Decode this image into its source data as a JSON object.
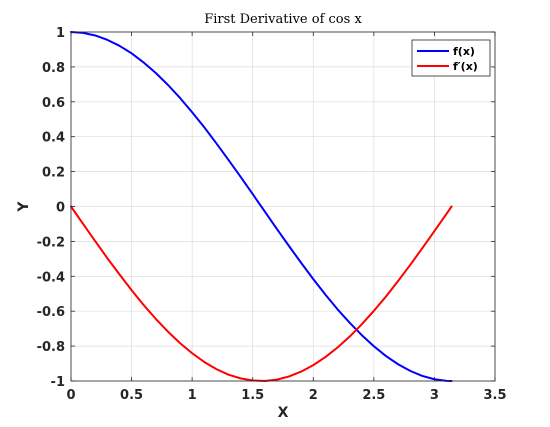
{
  "chart_data": {
    "type": "line",
    "title": "First Derivative of cos x",
    "xlabel": "X",
    "ylabel": "Y",
    "xlim": [
      0,
      3.5
    ],
    "ylim": [
      -1,
      1
    ],
    "xticks": [
      "0",
      "0.5",
      "1",
      "1.5",
      "2",
      "2.5",
      "3",
      "3.5"
    ],
    "yticks": [
      "-1",
      "-0.8",
      "-0.6",
      "-0.4",
      "-0.2",
      "0",
      "0.2",
      "0.4",
      "0.6",
      "0.8",
      "1"
    ],
    "grid": true,
    "legend_position": "top-right",
    "x": [
      0,
      0.1,
      0.2,
      0.3,
      0.4,
      0.5,
      0.6,
      0.7,
      0.8,
      0.9,
      1.0,
      1.1,
      1.2,
      1.3,
      1.4,
      1.5,
      1.6,
      1.7,
      1.8,
      1.9,
      2.0,
      2.1,
      2.2,
      2.3,
      2.4,
      2.5,
      2.6,
      2.7,
      2.8,
      2.9,
      3.0,
      3.1,
      3.1416
    ],
    "series": [
      {
        "name": "f(x)",
        "color": "#0000ff",
        "values": [
          1.0,
          0.995,
          0.98,
          0.955,
          0.921,
          0.878,
          0.825,
          0.765,
          0.697,
          0.622,
          0.54,
          0.454,
          0.362,
          0.267,
          0.17,
          0.071,
          -0.029,
          -0.129,
          -0.227,
          -0.323,
          -0.416,
          -0.505,
          -0.589,
          -0.666,
          -0.737,
          -0.801,
          -0.857,
          -0.904,
          -0.942,
          -0.971,
          -0.99,
          -0.999,
          -1.0
        ]
      },
      {
        "name": "f′(x)",
        "color": "#ff0000",
        "values": [
          -0.0,
          -0.1,
          -0.199,
          -0.296,
          -0.389,
          -0.479,
          -0.565,
          -0.644,
          -0.717,
          -0.783,
          -0.841,
          -0.891,
          -0.932,
          -0.964,
          -0.985,
          -0.997,
          -1.0,
          -0.992,
          -0.974,
          -0.946,
          -0.909,
          -0.863,
          -0.808,
          -0.746,
          -0.675,
          -0.598,
          -0.516,
          -0.427,
          -0.335,
          -0.239,
          -0.141,
          -0.042,
          -0.0
        ]
      }
    ]
  }
}
